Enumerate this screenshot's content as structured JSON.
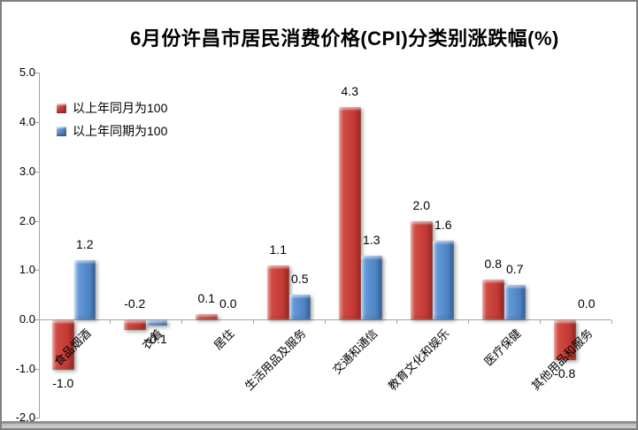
{
  "chart_data": {
    "type": "bar",
    "title": "6月份许昌市居民消费价格(CPI)分类别涨跌幅(%)",
    "categories": [
      "食品烟酒",
      "衣着",
      "居住",
      "生活用品及服务",
      "交通和通信",
      "教育文化和娱乐",
      "医疗保健",
      "其他用品和服务"
    ],
    "series": [
      {
        "name": "以上年同月为100",
        "color": "#c43933",
        "values": [
          -1.0,
          -0.2,
          0.1,
          1.1,
          4.3,
          2.0,
          0.8,
          -0.8
        ]
      },
      {
        "name": "以上年同期为100",
        "color": "#4f85c6",
        "values": [
          1.2,
          -0.1,
          0.0,
          0.5,
          1.3,
          1.6,
          0.7,
          0.0
        ]
      }
    ],
    "xlabel": "",
    "ylabel": "",
    "ylim": [
      -2.0,
      5.0
    ],
    "ytick_step": 1.0,
    "ytick_decimals": 1,
    "value_label_decimals": 1,
    "grid": false,
    "legend_position": "top-left-inside",
    "value_labels": true,
    "label_overrides": [
      {
        "series": 0,
        "category": 1,
        "position": "above-axis"
      }
    ]
  },
  "frame": {
    "background": "#ffffff",
    "border_color": "#7f7f7f",
    "axis_color": "#a3a3a3"
  }
}
